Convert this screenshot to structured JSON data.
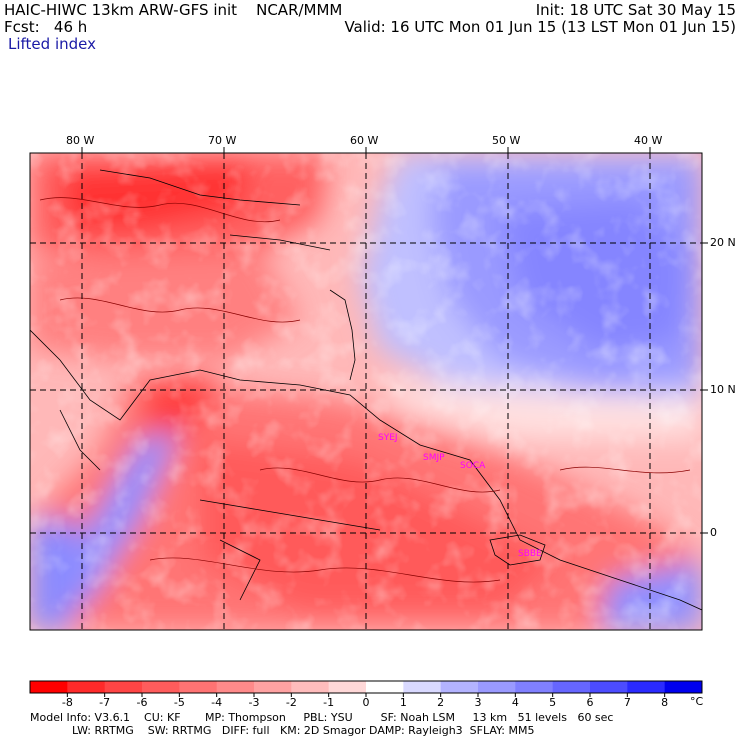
{
  "header": {
    "line1_left": "HAIC-HIWC 13km ARW-GFS init    NCAR/MMM",
    "line2_left": "Fcst:   46 h",
    "line3_left": "Lifted index",
    "line1_right": "Init: 18 UTC Sat 30 May 15",
    "line2_right": "Valid: 16 UTC Mon 01 Jun 15 (13 LST Mon 01 Jun 15)"
  },
  "map": {
    "longitude_labels": [
      "80 W",
      "70 W",
      "60 W",
      "50 W",
      "40 W"
    ],
    "latitude_labels": [
      "20 N",
      "10 N",
      "0"
    ],
    "station_labels": [
      "SYEJ",
      "SMJP",
      "SOCA",
      "SBBE"
    ],
    "colors": {
      "deep_red": "#ff1a1a",
      "mid_red": "#ff6b6b",
      "light_red": "#ffb3b3",
      "neutral": "#ffffff",
      "light_blue": "#c8c8ff",
      "mid_blue": "#7f7fff",
      "deep_blue": "#0000e6",
      "station": "#ff00ff"
    }
  },
  "colorbar": {
    "labels": [
      "-8",
      "-7",
      "-6",
      "-5",
      "-4",
      "-3",
      "-2",
      "-1",
      "0",
      "1",
      "2",
      "3",
      "4",
      "5",
      "6",
      "7",
      "8"
    ],
    "unit": "°C",
    "colors": [
      "#ff0000",
      "#ff2a2a",
      "#ff4545",
      "#ff5c5c",
      "#ff7373",
      "#ff8a8a",
      "#ffa2a2",
      "#ffbcbc",
      "#ffd8d8",
      "#ffffff",
      "#d9d9ff",
      "#b3b3ff",
      "#9a9aff",
      "#8080ff",
      "#6666ff",
      "#4c4cff",
      "#2a2aff",
      "#0000ee"
    ]
  },
  "footer": {
    "line1": "Model Info: V3.6.1    CU: KF       MP: Thompson     PBL: YSU        SF: Noah LSM     13 km   51 levels   60 sec",
    "line2": "            LW: RRTMG    SW: RRTMG   DIFF: full   KM: 2D Smagor DAMP: Rayleigh3  SFLAY: MM5"
  }
}
